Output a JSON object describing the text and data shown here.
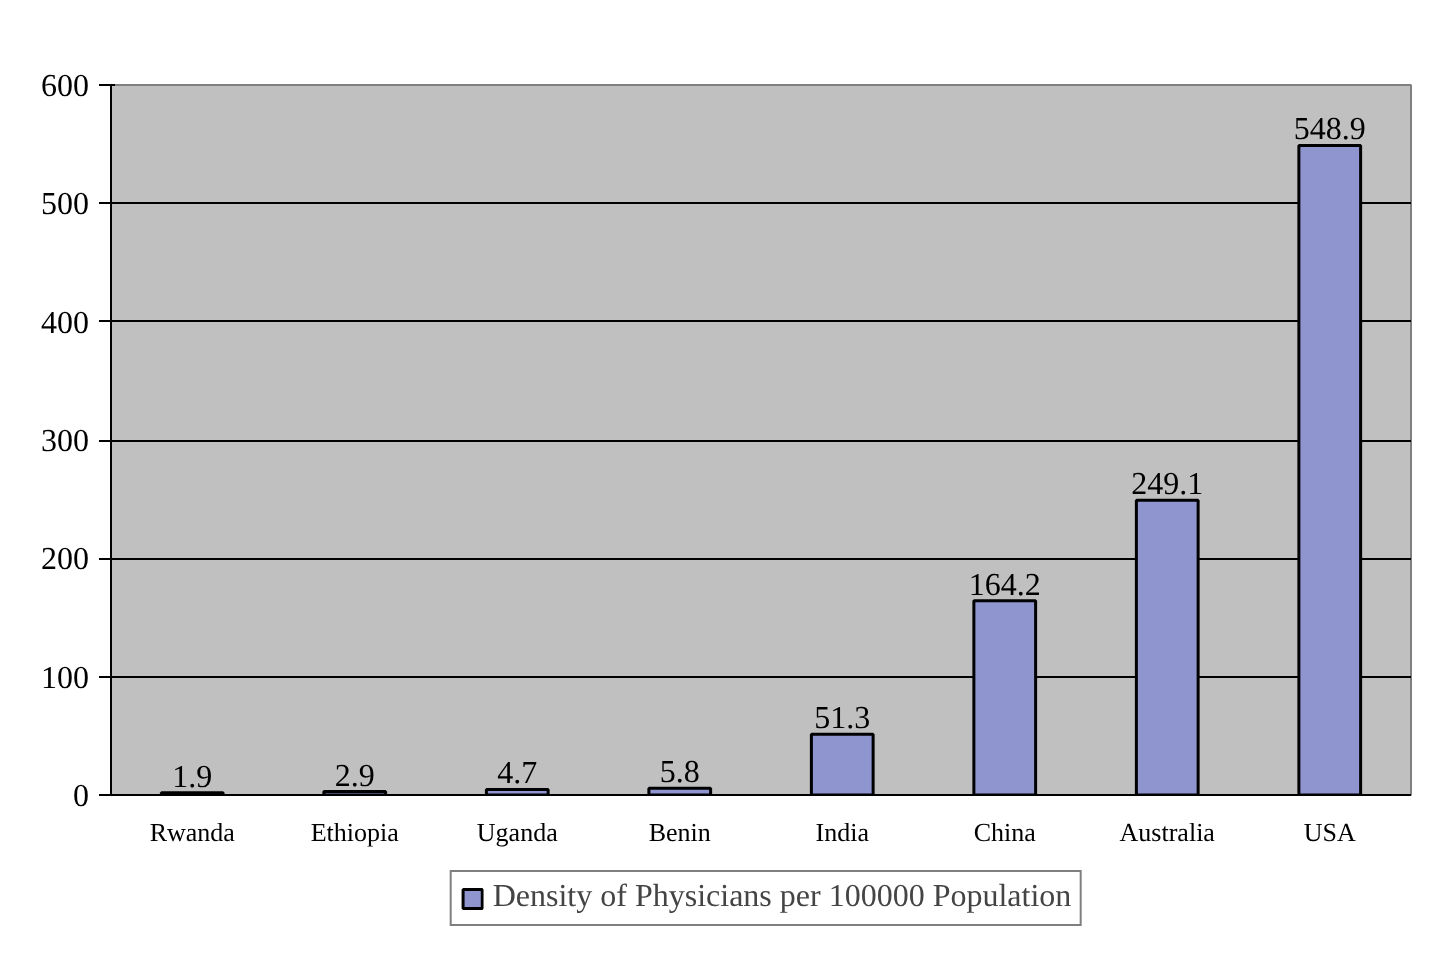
{
  "chart_data": {
    "type": "bar",
    "categories": [
      "Rwanda",
      "Ethiopia",
      "Uganda",
      "Benin",
      "India",
      "China",
      "Australia",
      "USA"
    ],
    "series": [
      {
        "name": "Density of Physicians per 100000 Population",
        "color": "#8f96cf",
        "values": [
          1.9,
          2.9,
          4.7,
          5.8,
          51.3,
          164.2,
          249.1,
          548.9
        ]
      }
    ],
    "ylim": [
      0,
      600
    ],
    "yticks": [
      0,
      100,
      200,
      300,
      400,
      500,
      600
    ],
    "grid": "y",
    "legend": "bottom",
    "data_labels": true
  }
}
